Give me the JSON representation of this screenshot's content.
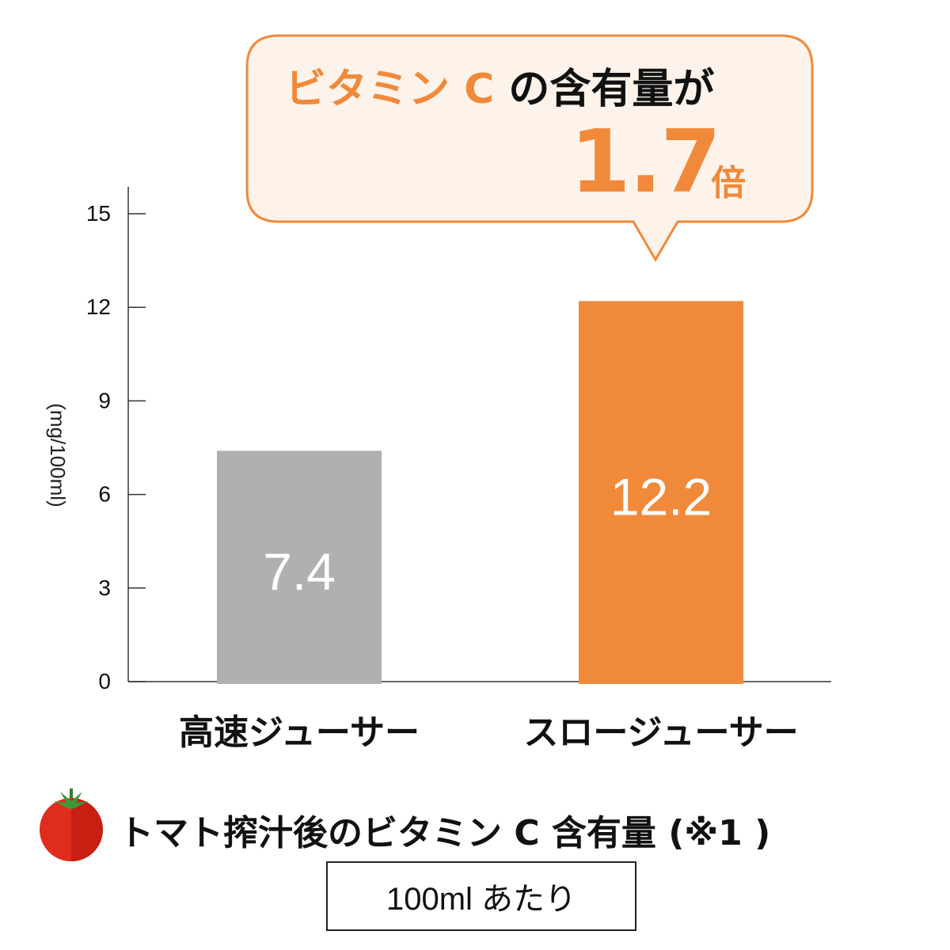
{
  "callout": {
    "highlight": "ビタミン C",
    "rest": " の含有量が",
    "ratio": "1.7",
    "unit": "倍"
  },
  "footer": {
    "icon": "tomato-icon",
    "title": "トマト搾汁後のビタミン C 含有量 (※1 )",
    "note": "100ml あたり"
  },
  "colors": {
    "accent": "#f08a3a",
    "bar_gray": "#b0b0b0",
    "bar_orange": "#f08a3a",
    "callout_bg": "#fef3ea",
    "tomato": "#e02c1c"
  },
  "chart_data": {
    "type": "bar",
    "categories": [
      "高速ジューサー",
      "スロージューサー"
    ],
    "values": [
      7.4,
      12.2
    ],
    "value_labels": [
      "7.4",
      "12.2"
    ],
    "bar_colors": [
      "#b0b0b0",
      "#f08a3a"
    ],
    "ylabel": "(mg/100ml)",
    "yticks": [
      0,
      3,
      6,
      9,
      12,
      15
    ],
    "ylim": [
      0,
      16
    ],
    "grid": false,
    "legend": "none"
  }
}
